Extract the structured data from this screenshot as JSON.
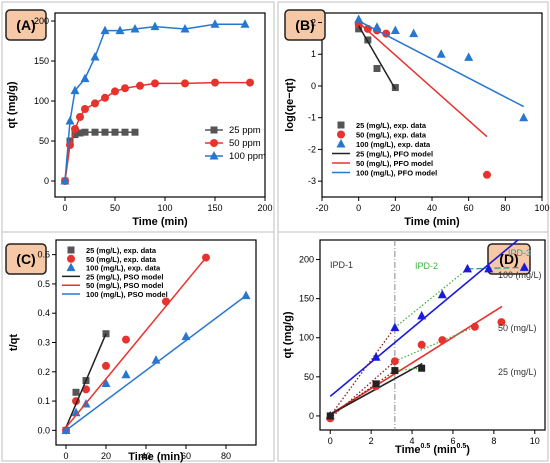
{
  "chart_data": [
    {
      "panel_label": "(A)",
      "type": "line",
      "xlabel": "Time (min)",
      "ylabel": "qt (mg/g)",
      "xlim": [
        -10,
        200
      ],
      "ylim": [
        -20,
        210
      ],
      "x_ticks": [
        "0",
        "50",
        "100",
        "150",
        "200"
      ],
      "y_ticks": [
        "0",
        "50",
        "100",
        "150",
        "200"
      ],
      "legend": "right",
      "series": [
        {
          "name": "25 ppm",
          "color": "#555555",
          "marker": "square",
          "x": [
            0,
            5,
            10,
            15,
            20,
            30,
            40,
            50,
            60,
            70
          ],
          "y": [
            0,
            50,
            58,
            60,
            61,
            61,
            61,
            61,
            61,
            61
          ]
        },
        {
          "name": "50 ppm",
          "color": "#e8322e",
          "marker": "circle",
          "x": [
            0,
            5,
            10,
            15,
            20,
            30,
            40,
            50,
            60,
            75,
            90,
            120,
            150,
            185
          ],
          "y": [
            0,
            45,
            65,
            80,
            90,
            97,
            104,
            112,
            116,
            119,
            122,
            122,
            123,
            123
          ]
        },
        {
          "name": "100 ppm",
          "color": "#2877cf",
          "marker": "triangle",
          "x": [
            0,
            5,
            10,
            20,
            30,
            40,
            55,
            70,
            90,
            120,
            150,
            180
          ],
          "y": [
            0,
            75,
            113,
            128,
            155,
            188,
            188,
            190,
            193,
            190,
            196,
            196
          ]
        }
      ]
    },
    {
      "panel_label": "(B)",
      "type": "scatter",
      "xlabel": "Time (min)",
      "ylabel": "log(qe−qt)",
      "xlim": [
        -20,
        100
      ],
      "ylim": [
        -3.5,
        2.3
      ],
      "x_ticks": [
        "-20",
        "0",
        "20",
        "40",
        "60",
        "80",
        "100"
      ],
      "y_ticks": [
        "-3",
        "-2",
        "-1",
        "0",
        "1",
        "2"
      ],
      "legend": "bottom-left",
      "series": [
        {
          "name": "25 (mg/L), exp. data",
          "color": "#555555",
          "marker": "square",
          "x": [
            0,
            5,
            10,
            20
          ],
          "y": [
            1.8,
            1.45,
            0.55,
            -0.05
          ]
        },
        {
          "name": "50 (mg/L), exp. data",
          "color": "#e8322e",
          "marker": "circle",
          "x": [
            0,
            5,
            10,
            15,
            70
          ],
          "y": [
            1.95,
            1.8,
            1.75,
            1.65,
            -2.8
          ]
        },
        {
          "name": "100 (mg/L), exp. data",
          "color": "#2877cf",
          "marker": "triangle",
          "x": [
            0,
            10,
            20,
            30,
            45,
            60,
            90
          ],
          "y": [
            2.1,
            1.85,
            1.75,
            1.65,
            1.0,
            0.9,
            -1.0
          ]
        },
        {
          "name": "25 (mg/L), PFO model",
          "color": "#222222",
          "line": true,
          "x": [
            0,
            20
          ],
          "y": [
            1.9,
            -0.1
          ]
        },
        {
          "name": "50 (mg/L), PFO model",
          "color": "#e8322e",
          "line": true,
          "x": [
            0,
            70
          ],
          "y": [
            2.0,
            -1.6
          ]
        },
        {
          "name": "100 (mg/L), PFO model",
          "color": "#2877cf",
          "line": true,
          "x": [
            0,
            90
          ],
          "y": [
            2.05,
            -0.65
          ]
        }
      ]
    },
    {
      "panel_label": "(C)",
      "type": "scatter",
      "xlabel": "Time (min)",
      "ylabel": "t/qt",
      "xlim": [
        -5,
        95
      ],
      "ylim": [
        -0.05,
        0.65
      ],
      "x_ticks": [
        "0",
        "20",
        "40",
        "60",
        "80"
      ],
      "y_ticks": [
        "0.0",
        "0.1",
        "0.2",
        "0.3",
        "0.4",
        "0.5",
        "0.6"
      ],
      "legend": "top-left",
      "series": [
        {
          "name": "25 (mg/L), exp. data",
          "color": "#555555",
          "marker": "square",
          "x": [
            0,
            5,
            10,
            20
          ],
          "y": [
            0.0,
            0.13,
            0.17,
            0.33
          ]
        },
        {
          "name": "50 (mg/L), exp. data",
          "color": "#e8322e",
          "marker": "circle",
          "x": [
            0,
            5,
            10,
            20,
            30,
            50,
            70
          ],
          "y": [
            0.0,
            0.1,
            0.14,
            0.22,
            0.31,
            0.44,
            0.59
          ]
        },
        {
          "name": "100 (mg/L), exp. data",
          "color": "#2877cf",
          "marker": "triangle",
          "x": [
            0,
            5,
            10,
            20,
            30,
            45,
            60,
            90
          ],
          "y": [
            0.0,
            0.06,
            0.09,
            0.16,
            0.19,
            0.24,
            0.32,
            0.46
          ]
        },
        {
          "name": "25 (mg/L), PSO model",
          "color": "#222222",
          "line": true,
          "x": [
            0,
            20
          ],
          "y": [
            0.01,
            0.33
          ]
        },
        {
          "name": "50 (mg/L), PSO model",
          "color": "#e8322e",
          "line": true,
          "x": [
            0,
            70
          ],
          "y": [
            0.01,
            0.59
          ]
        },
        {
          "name": "100 (mg/L), PSO model",
          "color": "#2877cf",
          "line": true,
          "x": [
            0,
            90
          ],
          "y": [
            0.0,
            0.46
          ]
        }
      ]
    },
    {
      "panel_label": "(D)",
      "type": "scatter",
      "xlabel": "Time^0.5 (min^0.5)",
      "ylabel": "qt (mg/g)",
      "xlim": [
        -0.5,
        10.5
      ],
      "ylim": [
        -18,
        225
      ],
      "x_ticks": [
        "0",
        "2",
        "4",
        "6",
        "8",
        "10"
      ],
      "y_ticks": [
        "0",
        "50",
        "100",
        "150",
        "200"
      ],
      "legend": "none",
      "annotations": [
        "IPD-1",
        "IPD-2",
        "IPD-3",
        "100 (mg/L)",
        "50 (mg/L)",
        "25 (mg/L)"
      ],
      "series": [
        {
          "name": "100 (mg/L)",
          "color": "#1a1adb",
          "marker": "triangle",
          "x": [
            0,
            2.24,
            3.16,
            4.47,
            5.48,
            6.71,
            7.75,
            9.49
          ],
          "y": [
            0,
            75,
            113,
            128,
            155,
            188,
            188,
            190
          ]
        },
        {
          "name": "50 (mg/L)",
          "color": "#e8322e",
          "marker": "circle",
          "x": [
            0,
            2.24,
            3.16,
            4.47,
            5.48,
            7.07,
            8.37
          ],
          "y": [
            -3,
            38,
            70,
            91,
            97,
            114,
            120
          ]
        },
        {
          "name": "25 (mg/L)",
          "color": "#222222",
          "marker": "square",
          "x": [
            0,
            2.24,
            3.16,
            4.47
          ],
          "y": [
            0,
            41,
            58,
            61
          ]
        }
      ],
      "fit_lines": [
        {
          "name": "100 (mg/L) fit",
          "color": "#1a1adb",
          "style": "solid",
          "x": [
            0,
            9.5
          ],
          "y": [
            25,
            232
          ]
        },
        {
          "name": "50 (mg/L) fit",
          "color": "#e8322e",
          "style": "solid",
          "x": [
            0,
            8.4
          ],
          "y": [
            2,
            140
          ]
        },
        {
          "name": "25 (mg/L) fit",
          "color": "#222222",
          "style": "solid",
          "x": [
            0,
            4.5
          ],
          "y": [
            2,
            67
          ]
        },
        {
          "name": "IPD-1 100",
          "color": "#8b1a1a",
          "style": "dotted",
          "x": [
            0,
            3.16
          ],
          "y": [
            0,
            113
          ]
        },
        {
          "name": "IPD-1 50",
          "color": "#8b1a1a",
          "style": "dotted",
          "x": [
            0,
            3.16
          ],
          "y": [
            -3,
            70
          ]
        },
        {
          "name": "IPD-1 25",
          "color": "#8b1a1a",
          "style": "dotted",
          "x": [
            0,
            3.16
          ],
          "y": [
            0,
            58
          ]
        },
        {
          "name": "IPD-2 100",
          "color": "#3cb53c",
          "style": "dotted",
          "x": [
            3.16,
            6.71
          ],
          "y": [
            113,
            188
          ]
        },
        {
          "name": "IPD-2 50",
          "color": "#3cb53c",
          "style": "dotted",
          "x": [
            3.16,
            7.07
          ],
          "y": [
            70,
            114
          ]
        },
        {
          "name": "IPD-2 25",
          "color": "#3cb53c",
          "style": "dotted",
          "x": [
            3.16,
            4.47
          ],
          "y": [
            58,
            61
          ]
        },
        {
          "name": "IPD-3 100",
          "color": "#2a9a9a",
          "style": "dashed",
          "x": [
            6.71,
            9.49
          ],
          "y": [
            188,
            190
          ]
        }
      ],
      "vline": {
        "x": 3.16,
        "color": "#888888"
      }
    }
  ]
}
